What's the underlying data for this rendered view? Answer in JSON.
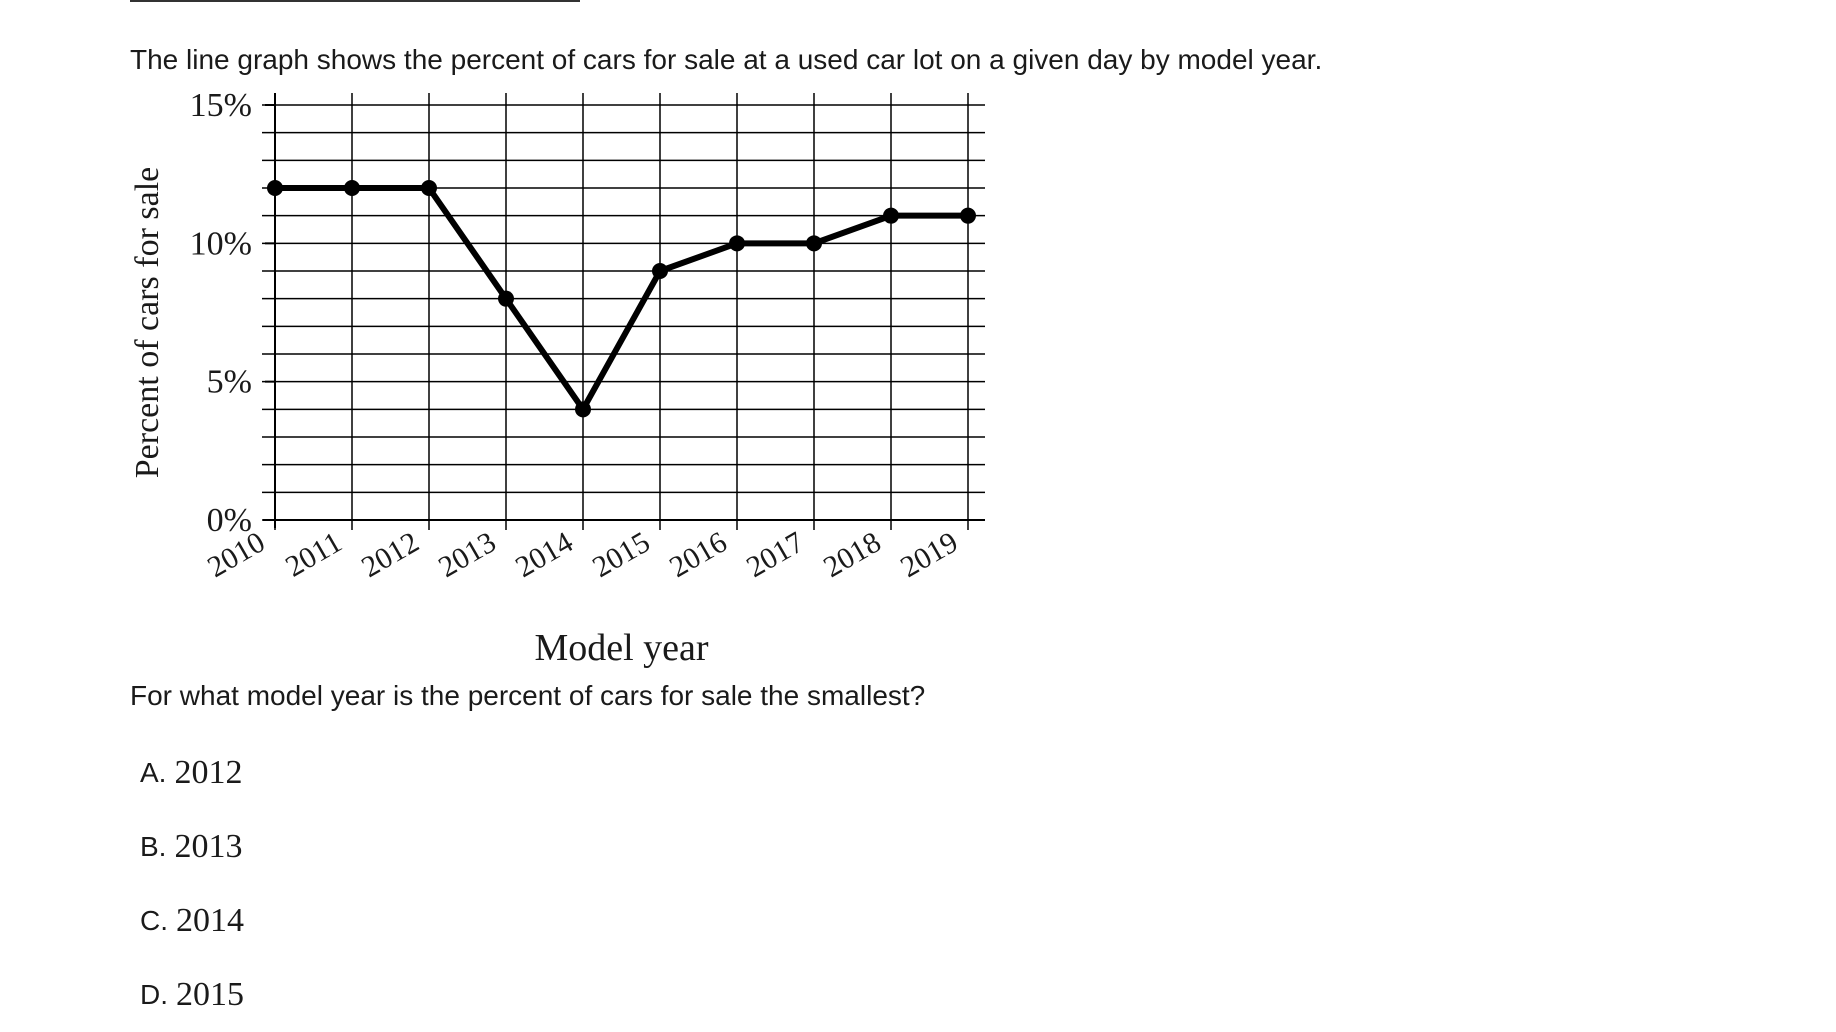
{
  "intro_text": "The line graph shows the percent of cars for sale at a used car lot on a given day by model year.",
  "question_text": "For what model year is the percent of cars for sale the smallest?",
  "choices": [
    {
      "letter": "A.",
      "text": "2012"
    },
    {
      "letter": "B.",
      "text": "2013"
    },
    {
      "letter": "C.",
      "text": "2014"
    },
    {
      "letter": "D.",
      "text": "2015"
    }
  ],
  "chart_data": {
    "type": "line",
    "title": "",
    "xlabel": "Model year",
    "ylabel": "Percent of cars for sale",
    "categories": [
      "2010",
      "2011",
      "2012",
      "2013",
      "2014",
      "2015",
      "2016",
      "2017",
      "2018",
      "2019"
    ],
    "values": [
      12,
      12,
      12,
      8,
      4,
      9,
      10,
      10,
      11,
      11
    ],
    "ylim": [
      0,
      15
    ],
    "y_ticks": [
      0,
      5,
      10,
      15
    ],
    "y_tick_labels": [
      "0%",
      "5%",
      "10%",
      "15%"
    ],
    "y_minor_step": 1,
    "grid": true,
    "legend": "none",
    "colors": {
      "line": "#000000",
      "grid": "#000000"
    }
  }
}
